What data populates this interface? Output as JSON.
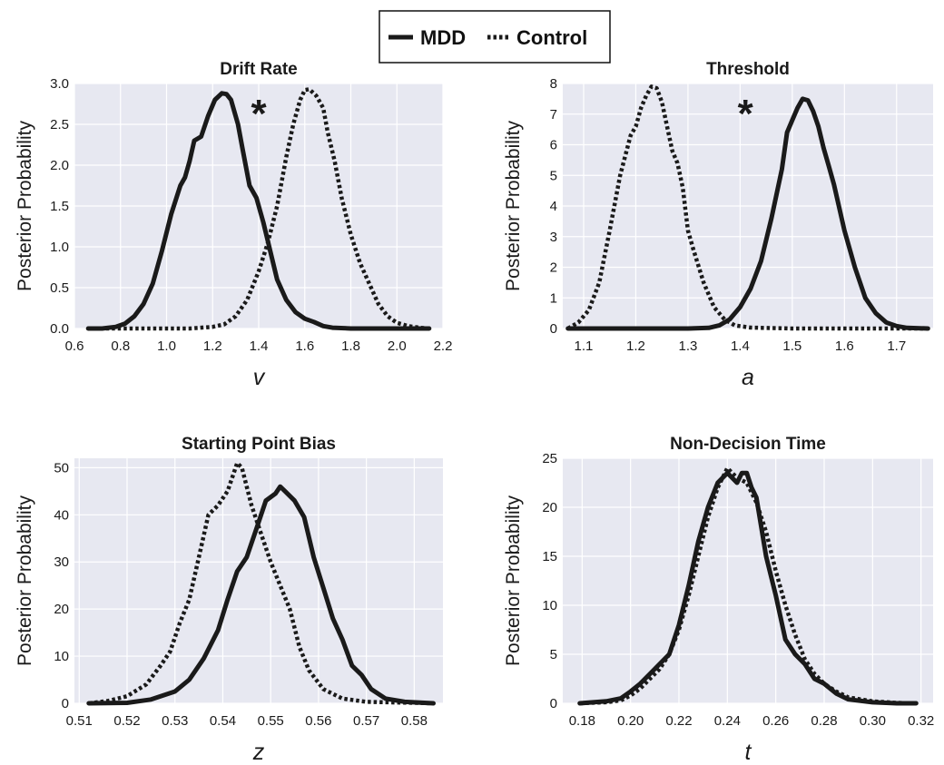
{
  "colors": {
    "plot_bg": "#e7e8f1",
    "grid": "#ffffff",
    "line": "#1a1a1a"
  },
  "legend": {
    "placement": "top-center",
    "items": [
      {
        "label": "MDD",
        "style": "solid"
      },
      {
        "label": "Control",
        "style": "dotted"
      }
    ]
  },
  "chart_data": [
    {
      "type": "line",
      "title": "Drift Rate",
      "xlabel": "v",
      "ylabel": "Posterior Probability",
      "xlim": [
        0.6,
        2.2
      ],
      "ylim": [
        0,
        3.0
      ],
      "xticks": [
        "0.6",
        "0.8",
        "1.0",
        "1.2",
        "1.4",
        "1.6",
        "1.8",
        "2.0",
        "2.2"
      ],
      "yticks": [
        "0.0",
        "0.5",
        "1.0",
        "1.5",
        "2.0",
        "2.5",
        "3.0"
      ],
      "annotation": {
        "text": "*",
        "x": 1.4
      },
      "grid": true,
      "series": [
        {
          "name": "MDD",
          "style": "solid",
          "x": [
            0.66,
            0.72,
            0.78,
            0.82,
            0.86,
            0.9,
            0.94,
            0.98,
            1.02,
            1.06,
            1.08,
            1.1,
            1.12,
            1.15,
            1.18,
            1.21,
            1.24,
            1.26,
            1.28,
            1.31,
            1.33,
            1.36,
            1.39,
            1.42,
            1.45,
            1.48,
            1.52,
            1.56,
            1.6,
            1.64,
            1.68,
            1.72,
            1.8,
            1.9,
            2.0,
            2.14
          ],
          "y": [
            0.0,
            0.0,
            0.02,
            0.06,
            0.15,
            0.3,
            0.55,
            0.95,
            1.4,
            1.75,
            1.85,
            2.05,
            2.3,
            2.35,
            2.6,
            2.8,
            2.88,
            2.87,
            2.8,
            2.5,
            2.2,
            1.75,
            1.6,
            1.3,
            0.95,
            0.6,
            0.35,
            0.2,
            0.12,
            0.08,
            0.03,
            0.01,
            0.0,
            0.0,
            0.0,
            0.0
          ]
        },
        {
          "name": "Control",
          "style": "dotted",
          "x": [
            0.66,
            0.9,
            1.1,
            1.2,
            1.25,
            1.3,
            1.35,
            1.4,
            1.44,
            1.48,
            1.52,
            1.55,
            1.58,
            1.6,
            1.62,
            1.65,
            1.68,
            1.7,
            1.73,
            1.76,
            1.8,
            1.84,
            1.88,
            1.92,
            1.96,
            2.0,
            2.05,
            2.1,
            2.14
          ],
          "y": [
            0.0,
            0.0,
            0.0,
            0.02,
            0.05,
            0.15,
            0.35,
            0.7,
            1.05,
            1.5,
            2.1,
            2.5,
            2.8,
            2.92,
            2.93,
            2.85,
            2.7,
            2.4,
            2.05,
            1.6,
            1.15,
            0.8,
            0.55,
            0.3,
            0.15,
            0.07,
            0.03,
            0.01,
            0.0
          ]
        }
      ]
    },
    {
      "type": "line",
      "title": "Threshold",
      "xlabel": "a",
      "ylabel": "Posterior Probability",
      "xlim": [
        1.06,
        1.77
      ],
      "ylim": [
        0,
        8
      ],
      "xticks": [
        "1.1",
        "1.2",
        "1.3",
        "1.4",
        "1.5",
        "1.6",
        "1.7"
      ],
      "yticks": [
        "0",
        "1",
        "2",
        "3",
        "4",
        "5",
        "6",
        "7",
        "8"
      ],
      "annotation": {
        "text": "*",
        "x": 1.41
      },
      "grid": true,
      "series": [
        {
          "name": "MDD",
          "style": "solid",
          "x": [
            1.07,
            1.2,
            1.3,
            1.34,
            1.36,
            1.38,
            1.4,
            1.42,
            1.44,
            1.46,
            1.48,
            1.49,
            1.5,
            1.51,
            1.52,
            1.53,
            1.54,
            1.55,
            1.56,
            1.57,
            1.58,
            1.6,
            1.62,
            1.64,
            1.66,
            1.68,
            1.7,
            1.72,
            1.76
          ],
          "y": [
            0.0,
            0.0,
            0.0,
            0.02,
            0.1,
            0.3,
            0.7,
            1.3,
            2.2,
            3.6,
            5.2,
            6.4,
            6.8,
            7.2,
            7.5,
            7.45,
            7.1,
            6.6,
            5.9,
            5.3,
            4.7,
            3.2,
            2.0,
            1.0,
            0.5,
            0.2,
            0.08,
            0.02,
            0.0
          ]
        },
        {
          "name": "Control",
          "style": "dotted",
          "x": [
            1.07,
            1.09,
            1.11,
            1.13,
            1.15,
            1.17,
            1.19,
            1.2,
            1.21,
            1.22,
            1.23,
            1.24,
            1.25,
            1.26,
            1.27,
            1.28,
            1.29,
            1.3,
            1.31,
            1.33,
            1.35,
            1.37,
            1.39,
            1.42,
            1.5,
            1.6,
            1.76
          ],
          "y": [
            0.0,
            0.2,
            0.6,
            1.5,
            3.2,
            5.0,
            6.3,
            6.6,
            7.2,
            7.6,
            7.9,
            7.85,
            7.4,
            6.6,
            5.8,
            5.4,
            4.6,
            3.2,
            2.6,
            1.5,
            0.7,
            0.3,
            0.1,
            0.03,
            0.0,
            0.0,
            0.0
          ]
        }
      ]
    },
    {
      "type": "line",
      "title": "Starting Point Bias",
      "xlabel": "z",
      "ylabel": "Posterior Probability",
      "xlim": [
        0.509,
        0.586
      ],
      "ylim": [
        0,
        52
      ],
      "xticks": [
        "0.51",
        "0.52",
        "0.53",
        "0.54",
        "0.55",
        "0.56",
        "0.57",
        "0.58"
      ],
      "yticks": [
        "0",
        "10",
        "20",
        "30",
        "40",
        "50"
      ],
      "grid": true,
      "series": [
        {
          "name": "MDD",
          "style": "solid",
          "x": [
            0.512,
            0.52,
            0.525,
            0.53,
            0.533,
            0.536,
            0.539,
            0.541,
            0.543,
            0.545,
            0.547,
            0.549,
            0.551,
            0.552,
            0.553,
            0.555,
            0.557,
            0.559,
            0.561,
            0.563,
            0.565,
            0.567,
            0.569,
            0.571,
            0.574,
            0.578,
            0.584
          ],
          "y": [
            0.0,
            0.1,
            0.8,
            2.5,
            5.0,
            9.5,
            15.5,
            22.0,
            28.0,
            31.0,
            37.0,
            43.0,
            44.5,
            46.0,
            45.0,
            43.0,
            39.5,
            31.0,
            24.5,
            18.0,
            13.5,
            8.0,
            6.0,
            3.0,
            1.0,
            0.3,
            0.0
          ]
        },
        {
          "name": "Control",
          "style": "dotted",
          "x": [
            0.512,
            0.516,
            0.52,
            0.524,
            0.527,
            0.529,
            0.531,
            0.533,
            0.535,
            0.537,
            0.539,
            0.541,
            0.542,
            0.543,
            0.544,
            0.545,
            0.546,
            0.548,
            0.55,
            0.552,
            0.554,
            0.556,
            0.558,
            0.561,
            0.565,
            0.57,
            0.584
          ],
          "y": [
            0.0,
            0.5,
            1.5,
            4.0,
            8.0,
            11.0,
            17.0,
            22.0,
            31.0,
            40.0,
            42.0,
            45.0,
            48.0,
            51.0,
            50.0,
            46.0,
            42.0,
            36.0,
            30.0,
            25.0,
            20.0,
            12.0,
            7.0,
            3.0,
            1.0,
            0.3,
            0.0
          ]
        }
      ]
    },
    {
      "type": "line",
      "title": "Non-Decision Time",
      "xlabel": "t",
      "ylabel": "Posterior Probability",
      "xlim": [
        0.172,
        0.325
      ],
      "ylim": [
        0,
        25
      ],
      "xticks": [
        "0.18",
        "0.20",
        "0.22",
        "0.24",
        "0.26",
        "0.28",
        "0.30",
        "0.32"
      ],
      "yticks": [
        "0",
        "5",
        "10",
        "15",
        "20",
        "25"
      ],
      "grid": true,
      "series": [
        {
          "name": "MDD",
          "style": "solid",
          "x": [
            0.179,
            0.19,
            0.196,
            0.2,
            0.204,
            0.208,
            0.212,
            0.216,
            0.22,
            0.224,
            0.228,
            0.232,
            0.236,
            0.24,
            0.242,
            0.244,
            0.246,
            0.248,
            0.25,
            0.252,
            0.256,
            0.26,
            0.264,
            0.268,
            0.272,
            0.276,
            0.28,
            0.285,
            0.29,
            0.3,
            0.31,
            0.318
          ],
          "y": [
            0.0,
            0.2,
            0.5,
            1.2,
            2.0,
            3.0,
            4.0,
            5.0,
            8.0,
            12.0,
            16.5,
            20.0,
            22.5,
            23.5,
            23.0,
            22.5,
            23.5,
            23.5,
            22.0,
            21.0,
            15.0,
            11.0,
            6.5,
            5.0,
            4.0,
            2.5,
            2.0,
            1.0,
            0.4,
            0.1,
            0.0,
            0.0
          ]
        },
        {
          "name": "Control",
          "style": "dotted",
          "x": [
            0.179,
            0.19,
            0.196,
            0.2,
            0.204,
            0.208,
            0.212,
            0.216,
            0.22,
            0.224,
            0.228,
            0.232,
            0.236,
            0.24,
            0.244,
            0.248,
            0.252,
            0.256,
            0.26,
            0.264,
            0.268,
            0.272,
            0.276,
            0.28,
            0.285,
            0.29,
            0.3,
            0.31,
            0.318
          ],
          "y": [
            0.0,
            0.1,
            0.3,
            0.8,
            1.5,
            2.5,
            3.5,
            5.0,
            7.5,
            11.0,
            15.0,
            19.0,
            22.0,
            24.0,
            23.0,
            22.5,
            20.5,
            17.5,
            13.5,
            10.0,
            7.0,
            4.5,
            3.0,
            2.0,
            1.2,
            0.6,
            0.2,
            0.05,
            0.0
          ]
        }
      ]
    }
  ]
}
